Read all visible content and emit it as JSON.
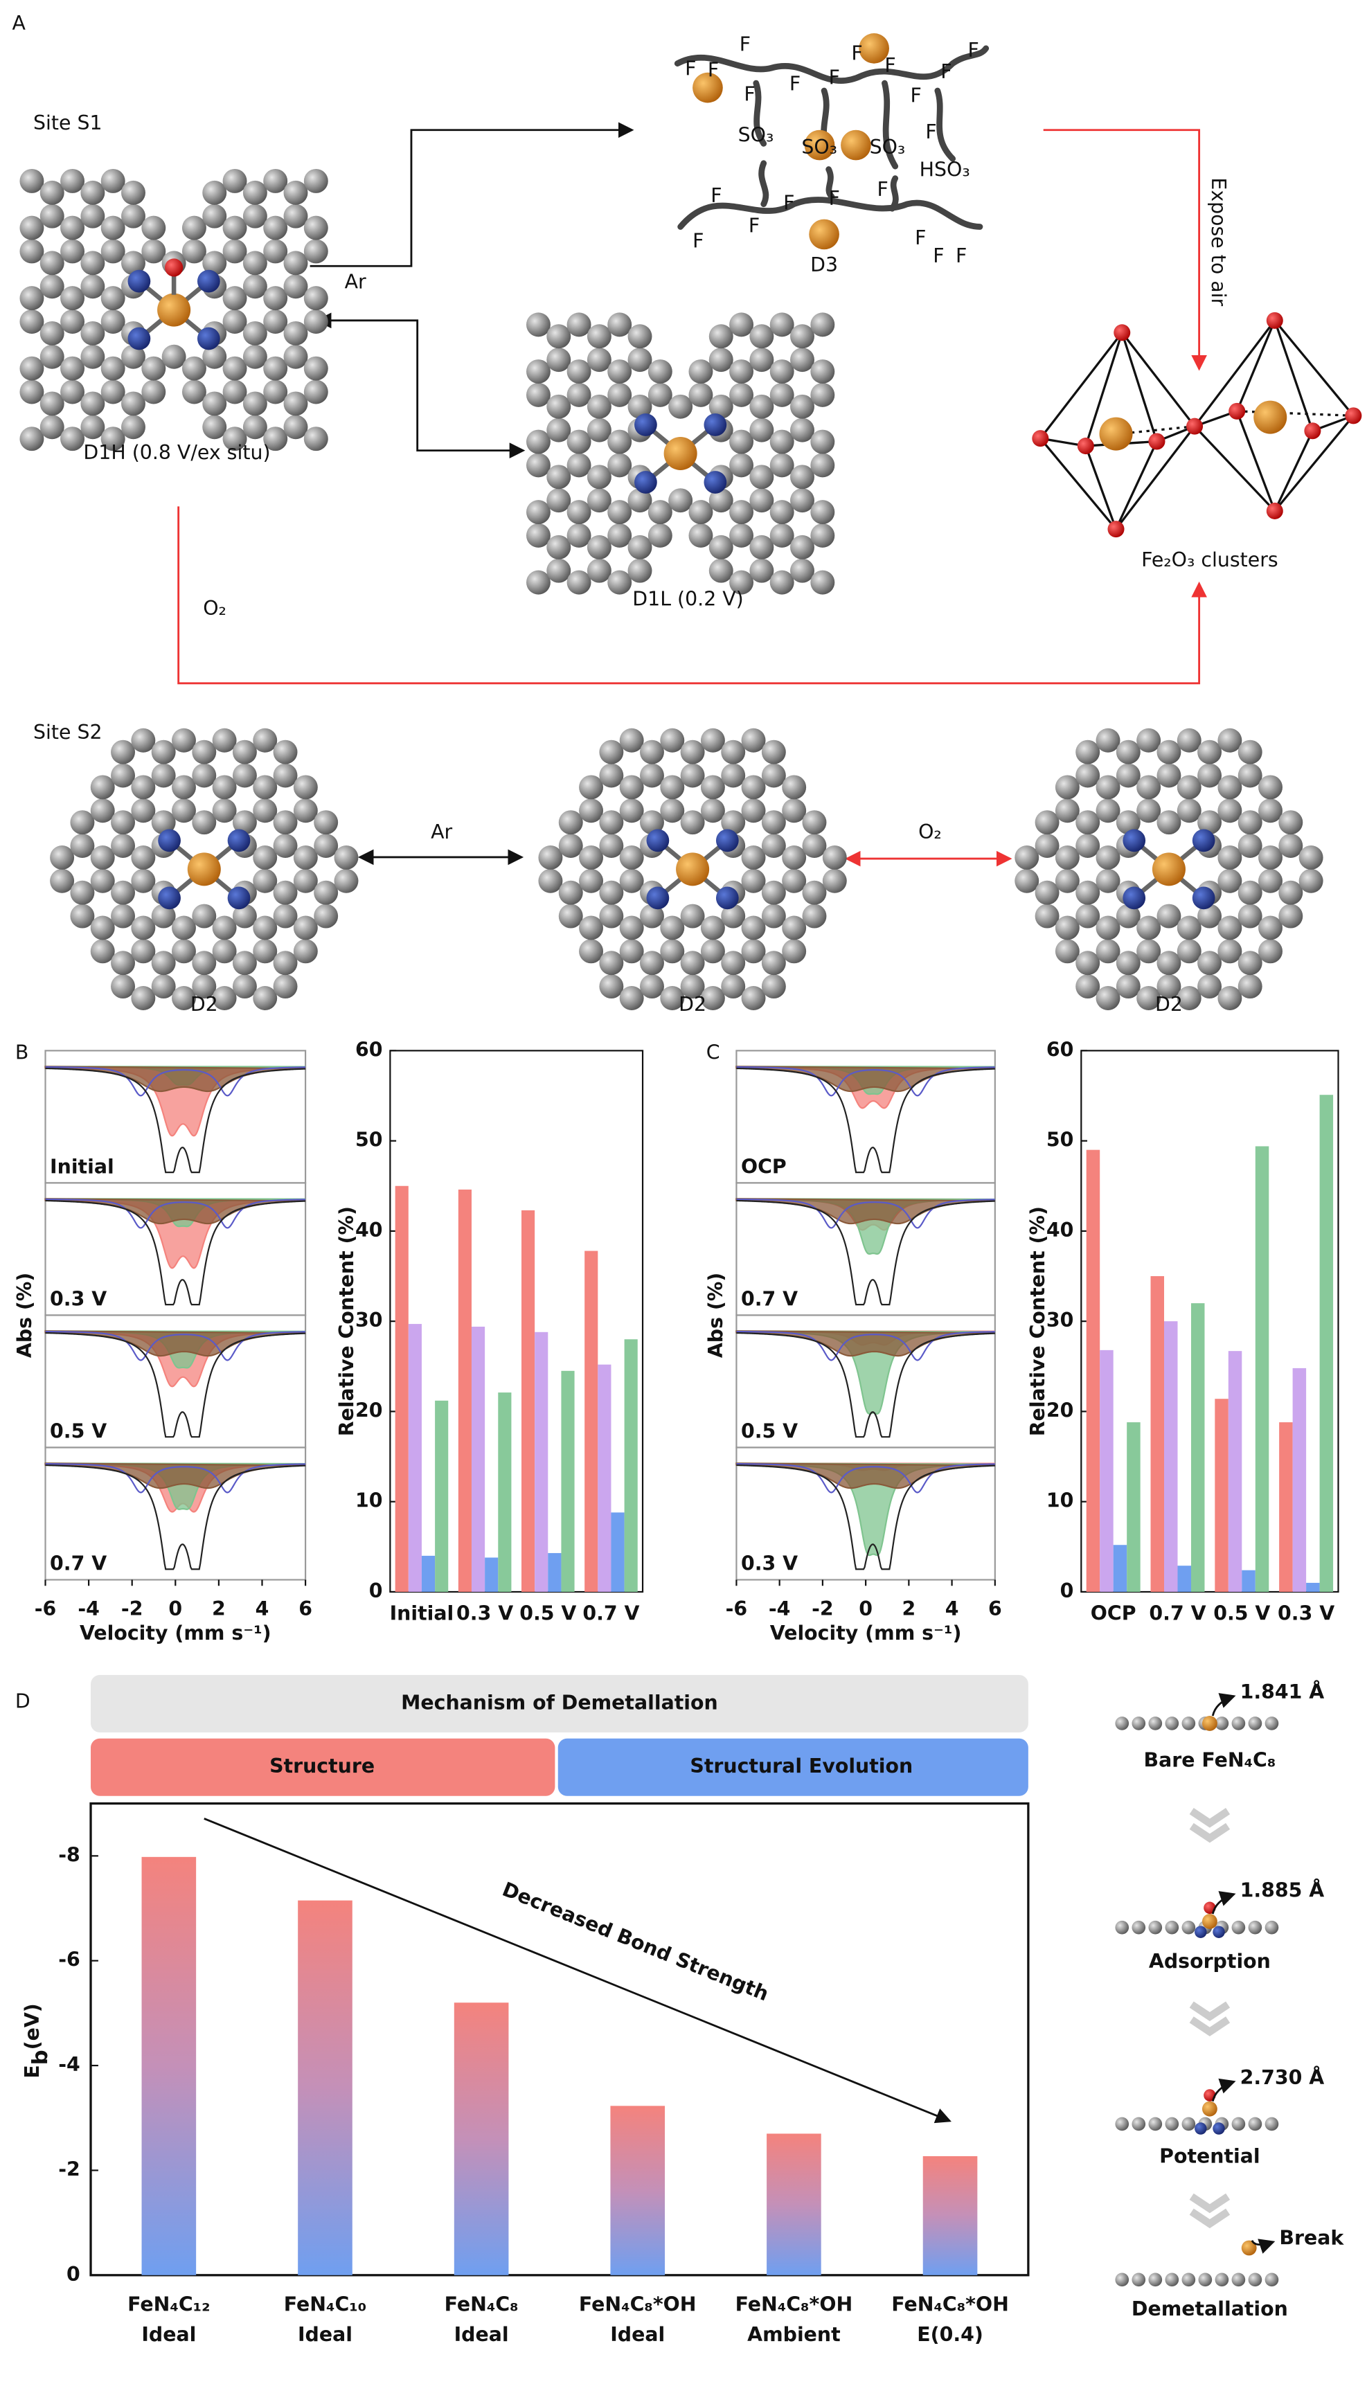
{
  "panel_a": {
    "label": "A",
    "site_s1": "Site S1",
    "d1h": "D1H (0.8 V/ex situ)",
    "d1l": "D1L (0.2 V)",
    "ar_s1": "Ar",
    "o2_s1": "O₂",
    "expose": "Expose to air",
    "cluster": "Fe₂O₃ clusters",
    "d3": "D3",
    "fluorines": [
      "F",
      "F",
      "F",
      "F",
      "F",
      "F",
      "F",
      "F",
      "F",
      "F",
      "F",
      "F",
      "F",
      "F",
      "F",
      "F",
      "F",
      "F",
      "F",
      "F",
      "F"
    ],
    "sulfonates": [
      "SO₃",
      "SO₃",
      "SO₃",
      "HSO₃"
    ],
    "site_s2": "Site S2",
    "d2": [
      "D2",
      "D2",
      "D2"
    ],
    "ar_s2": "Ar",
    "o2_s2": "O₂"
  },
  "chart_data": [
    {
      "type": "spectra",
      "panel_label": "B",
      "panels": [
        "Initial",
        "0.3 V",
        "0.5 V",
        "0.7 V"
      ],
      "xlabel": "Velocity (mm s⁻¹)",
      "ylabel": "Abs (%)",
      "xlim": [
        -6,
        6
      ],
      "xticks": [
        -6,
        -4,
        -2,
        0,
        2,
        4,
        6
      ]
    },
    {
      "type": "bar",
      "ylabel": "Relative Content (%)",
      "categories": [
        "Initial",
        "0.3 V",
        "0.5 V",
        "0.7 V"
      ],
      "series": [
        {
          "color": "#f4837d",
          "values": [
            45,
            44.6,
            42.3,
            37.8
          ]
        },
        {
          "color": "#cba6ee",
          "values": [
            29.7,
            29.4,
            28.8,
            25.2
          ]
        },
        {
          "color": "#6f9ff0",
          "values": [
            4.0,
            3.8,
            4.3,
            8.8
          ]
        },
        {
          "color": "#88c99a",
          "values": [
            21.2,
            22.1,
            24.5,
            28.0
          ]
        }
      ],
      "ylim": [
        0,
        60
      ],
      "yticks": [
        0,
        10,
        20,
        30,
        40,
        50,
        60
      ]
    },
    {
      "type": "spectra",
      "panel_label": "C",
      "panels": [
        "OCP",
        "0.7 V",
        "0.5 V",
        "0.3 V"
      ],
      "xlabel": "Velocity (mm s⁻¹)",
      "ylabel": "Abs (%)",
      "xlim": [
        -6,
        6
      ],
      "xticks": [
        -6,
        -4,
        -2,
        0,
        2,
        4,
        6
      ]
    },
    {
      "type": "bar",
      "ylabel": "Relative Content (%)",
      "categories": [
        "OCP",
        "0.7 V",
        "0.5 V",
        "0.3 V"
      ],
      "series": [
        {
          "color": "#f4837d",
          "values": [
            49,
            35,
            21.4,
            18.8
          ]
        },
        {
          "color": "#cba6ee",
          "values": [
            26.8,
            30,
            26.7,
            24.8
          ]
        },
        {
          "color": "#6f9ff0",
          "values": [
            5.2,
            2.9,
            2.4,
            1.0
          ]
        },
        {
          "color": "#88c99a",
          "values": [
            18.8,
            32,
            49.4,
            55.1
          ]
        }
      ],
      "ylim": [
        0,
        60
      ],
      "yticks": [
        0,
        10,
        20,
        30,
        40,
        50,
        60
      ]
    },
    {
      "type": "gradient-bar",
      "panel_label": "D",
      "header": "Mechanism of Demetallation",
      "groups": [
        "Structure",
        "Structural Evolution"
      ],
      "annotation": "Decreased Bond Strength",
      "ylabel": {
        "text": "E",
        "subscript": "b",
        "unit": "(eV)"
      },
      "categories": [
        "FeN₄C₁₂",
        "FeN₄C₁₀",
        "FeN₄C₈",
        "FeN₄C₈*OH",
        "FeN₄C₈*OH",
        "FeN₄C₈*OH"
      ],
      "conditions": [
        "Ideal",
        "Ideal",
        "Ideal",
        "Ideal",
        "Ambient",
        "E(0.4)"
      ],
      "values": [
        -7.98,
        -7.15,
        -5.2,
        -3.23,
        -2.7,
        -2.27
      ],
      "ylim": [
        0,
        -9
      ],
      "yticks": [
        0,
        -2,
        -4,
        -6,
        -8
      ]
    }
  ],
  "side_panel": {
    "steps": [
      {
        "distance": "1.841 Å",
        "label": "Bare FeN₄C₈"
      },
      {
        "distance": "1.885 Å",
        "label": "Adsorption"
      },
      {
        "distance": "2.730 Å",
        "label": "Potential"
      },
      {
        "note": "Break",
        "label": "Demetallation"
      }
    ]
  }
}
